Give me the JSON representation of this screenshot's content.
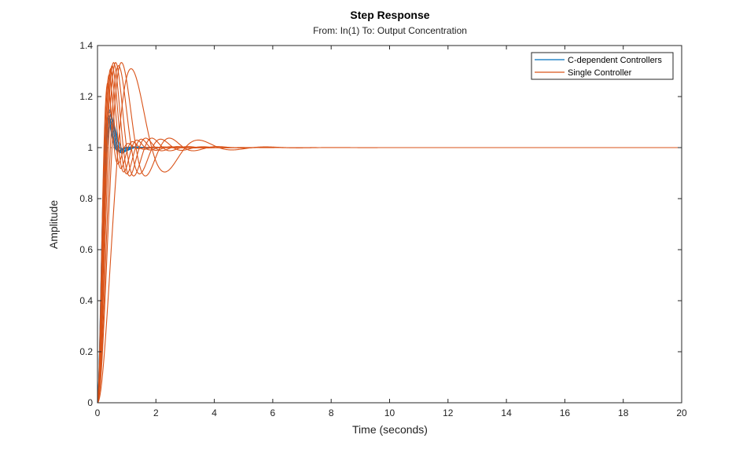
{
  "chart_data": {
    "type": "line",
    "title": "Step Response",
    "subtitle": "From: In(1)  To: Output Concentration",
    "xlabel": "Time (seconds)",
    "ylabel": "Amplitude",
    "xlim": [
      0,
      20
    ],
    "ylim": [
      0,
      1.4
    ],
    "xticks": [
      "0",
      "2",
      "4",
      "6",
      "8",
      "10",
      "12",
      "14",
      "16",
      "18",
      "20"
    ],
    "yticks": [
      "0",
      "0.2",
      "0.4",
      "0.6",
      "0.8",
      "1",
      "1.2",
      "1.4"
    ],
    "grid": false,
    "legend_position": "top-right",
    "reference_line": 1,
    "series": [
      {
        "name": "C-dependent Controllers",
        "color": "#0072BD",
        "curves": [
          {
            "peak_time": 0.42,
            "peak": 1.15,
            "damping": 0.52
          },
          {
            "peak_time": 0.4,
            "peak": 1.14,
            "damping": 0.53
          },
          {
            "peak_time": 0.38,
            "peak": 1.13,
            "damping": 0.55
          },
          {
            "peak_time": 0.36,
            "peak": 1.12,
            "damping": 0.56
          },
          {
            "peak_time": 0.35,
            "peak": 1.11,
            "damping": 0.57
          },
          {
            "peak_time": 0.45,
            "peak": 1.13,
            "damping": 0.55
          },
          {
            "peak_time": 0.48,
            "peak": 1.12,
            "damping": 0.57
          }
        ]
      },
      {
        "name": "Single Controller",
        "color": "#D95319",
        "curves": [
          {
            "peak_time": 0.35,
            "peak": 1.26,
            "damping": 0.4
          },
          {
            "peak_time": 0.4,
            "peak": 1.28,
            "damping": 0.37
          },
          {
            "peak_time": 0.45,
            "peak": 1.3,
            "damping": 0.35
          },
          {
            "peak_time": 0.5,
            "peak": 1.31,
            "damping": 0.34
          },
          {
            "peak_time": 0.55,
            "peak": 1.32,
            "damping": 0.33
          },
          {
            "peak_time": 0.62,
            "peak": 1.33,
            "damping": 0.33
          },
          {
            "peak_time": 0.72,
            "peak": 1.33,
            "damping": 0.34
          },
          {
            "peak_time": 0.82,
            "peak": 1.32,
            "damping": 0.33
          },
          {
            "peak_time": 1.15,
            "peak": 1.29,
            "damping": 0.35
          }
        ]
      }
    ]
  }
}
